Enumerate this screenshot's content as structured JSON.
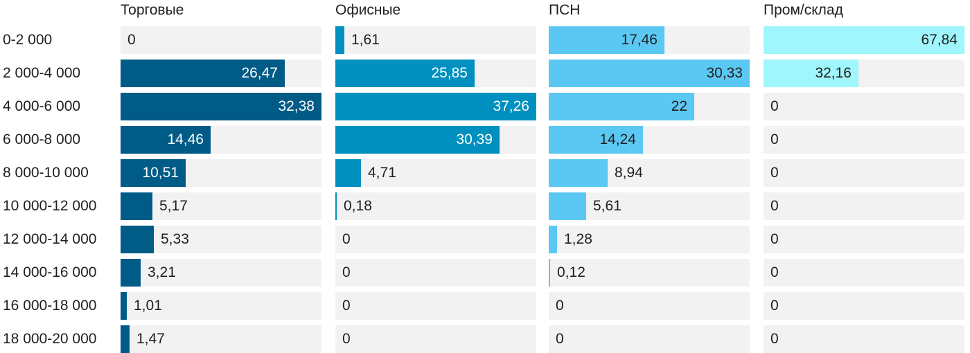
{
  "chart_data": {
    "type": "bar",
    "orientation": "horizontal",
    "title": "",
    "categories": [
      "0-2 000",
      "2 000-4 000",
      "4 000-6 000",
      "6 000-8 000",
      "8 000-10 000",
      "10 000-12 000",
      "12 000-14 000",
      "14 000-16 000",
      "16 000-18 000",
      "18 000-20 000"
    ],
    "series": [
      {
        "name": "Торговые",
        "color": "#005b87",
        "max": 32.38,
        "values": [
          0,
          26.47,
          32.38,
          14.46,
          10.51,
          5.17,
          5.33,
          3.21,
          1.01,
          1.47
        ],
        "labels": [
          "0",
          "26,47",
          "32,38",
          "14,46",
          "10,51",
          "5,17",
          "5,33",
          "3,21",
          "1,01",
          "1,47"
        ]
      },
      {
        "name": "Офисные",
        "color": "#0090c0",
        "max": 37.26,
        "values": [
          1.61,
          25.85,
          37.26,
          30.39,
          4.71,
          0.18,
          0,
          0,
          0,
          0
        ],
        "labels": [
          "1,61",
          "25,85",
          "37,26",
          "30,39",
          "4,71",
          "0,18",
          "0",
          "0",
          "0",
          "0"
        ]
      },
      {
        "name": "ПСН",
        "color": "#5bc8f3",
        "max": 30.33,
        "values": [
          17.46,
          30.33,
          22,
          14.24,
          8.94,
          5.61,
          1.28,
          0.12,
          0,
          0
        ],
        "labels": [
          "17,46",
          "30,33",
          "22",
          "14,24",
          "8,94",
          "5,61",
          "1,28",
          "0,12",
          "0",
          "0"
        ]
      },
      {
        "name": "Пром/склад",
        "color": "#9ff6fc",
        "max": 67.84,
        "values": [
          67.84,
          32.16,
          0,
          0,
          0,
          0,
          0,
          0,
          0,
          0
        ],
        "labels": [
          "67,84",
          "32,16",
          "0",
          "0",
          "0",
          "0",
          "0",
          "0",
          "0",
          "0"
        ]
      }
    ],
    "colors": {
      "track": "#f2f2f2",
      "text_dark": "#1f1f1f",
      "text_light": "#ffffff"
    }
  }
}
